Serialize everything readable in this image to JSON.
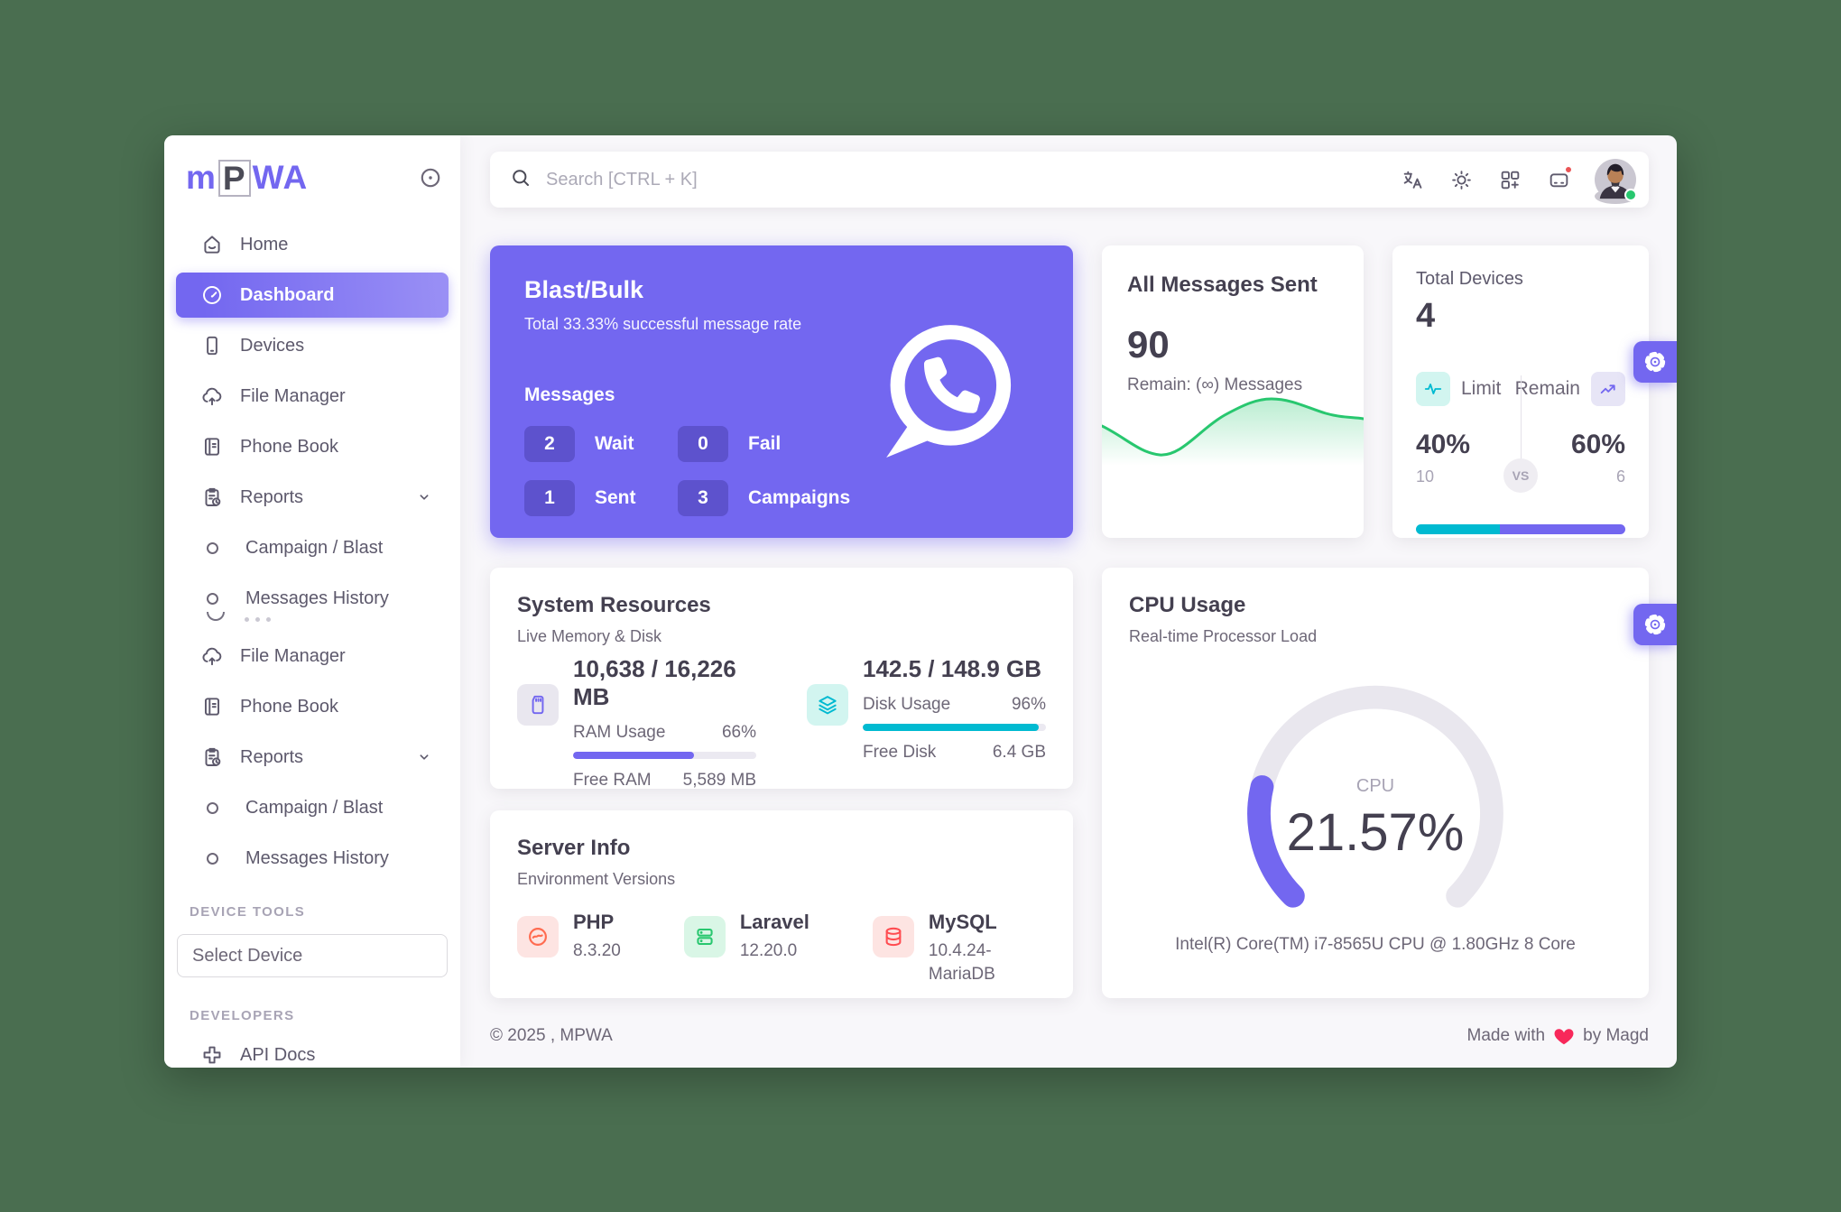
{
  "colors": {
    "primary": "#7367f0",
    "success": "#28c76f",
    "info": "#00bad1",
    "danger": "#ea5455",
    "heart": "#f8285a",
    "background_green": "#4a6e50",
    "page_bg": "#f8f7fa"
  },
  "logo": {
    "part1": "m",
    "part2": "P",
    "part3": "WA"
  },
  "sidebar": {
    "items": [
      {
        "label": "Home"
      },
      {
        "label": "Dashboard",
        "active": true
      },
      {
        "label": "Devices"
      },
      {
        "label": "File Manager"
      },
      {
        "label": "Phone Book"
      },
      {
        "label": "Reports"
      },
      {
        "label": "Campaign / Blast"
      },
      {
        "label": "Messages History"
      },
      {
        "label": "File Manager"
      },
      {
        "label": "Phone Book"
      },
      {
        "label": "Reports"
      },
      {
        "label": "Campaign / Blast"
      },
      {
        "label": "Messages History"
      }
    ],
    "sections": {
      "device_tools": "DEVICE TOOLS",
      "developers": "DEVELOPERS"
    },
    "select_device": "Select Device",
    "api_docs": "API Docs"
  },
  "topbar": {
    "search_placeholder": "Search [CTRL + K]"
  },
  "blast": {
    "title": "Blast/Bulk",
    "subtitle": "Total 33.33% successful message rate",
    "section": "Messages",
    "stats": [
      {
        "value": "2",
        "label": "Wait"
      },
      {
        "value": "0",
        "label": "Fail"
      },
      {
        "value": "1",
        "label": "Sent"
      },
      {
        "value": "3",
        "label": "Campaigns"
      }
    ]
  },
  "messages_card": {
    "title": "All Messages Sent",
    "value": "90",
    "remain": "Remain: (∞) Messages"
  },
  "devices_card": {
    "title": "Total Devices",
    "value": "4",
    "limit_label": "Limit",
    "remain_label": "Remain",
    "vs": "VS",
    "limit_pct": "40%",
    "remain_pct": "60%",
    "limit_count": "10",
    "remain_count": "6",
    "limit_pct_num": 40
  },
  "resources_card": {
    "title": "System Resources",
    "subtitle": "Live Memory & Disk",
    "ram": {
      "heading": "10,638 / 16,226 MB",
      "label": "RAM Usage",
      "pct": "66%",
      "pct_num": 66,
      "free_label": "Free RAM",
      "free_value": "5,589 MB"
    },
    "disk": {
      "heading": "142.5 / 148.9 GB",
      "label": "Disk Usage",
      "pct": "96%",
      "pct_num": 96,
      "free_label": "Free Disk",
      "free_value": "6.4 GB"
    }
  },
  "server_card": {
    "title": "Server Info",
    "subtitle": "Environment Versions",
    "items": [
      {
        "name": "PHP",
        "version": "8.3.20"
      },
      {
        "name": "Laravel",
        "version": "12.20.0"
      },
      {
        "name": "MySQL",
        "version": "10.4.24-MariaDB"
      }
    ]
  },
  "cpu_card": {
    "title": "CPU Usage",
    "subtitle": "Real-time Processor Load",
    "gauge_label": "CPU",
    "value": "21.57%",
    "pct_num": 21.57,
    "caption": "Intel(R) Core(TM) i7-8565U CPU @ 1.80GHz 8 Core"
  },
  "footer": {
    "copyright": "© 2025 , MPWA",
    "made_with": "Made with",
    "by": "by Magd"
  }
}
